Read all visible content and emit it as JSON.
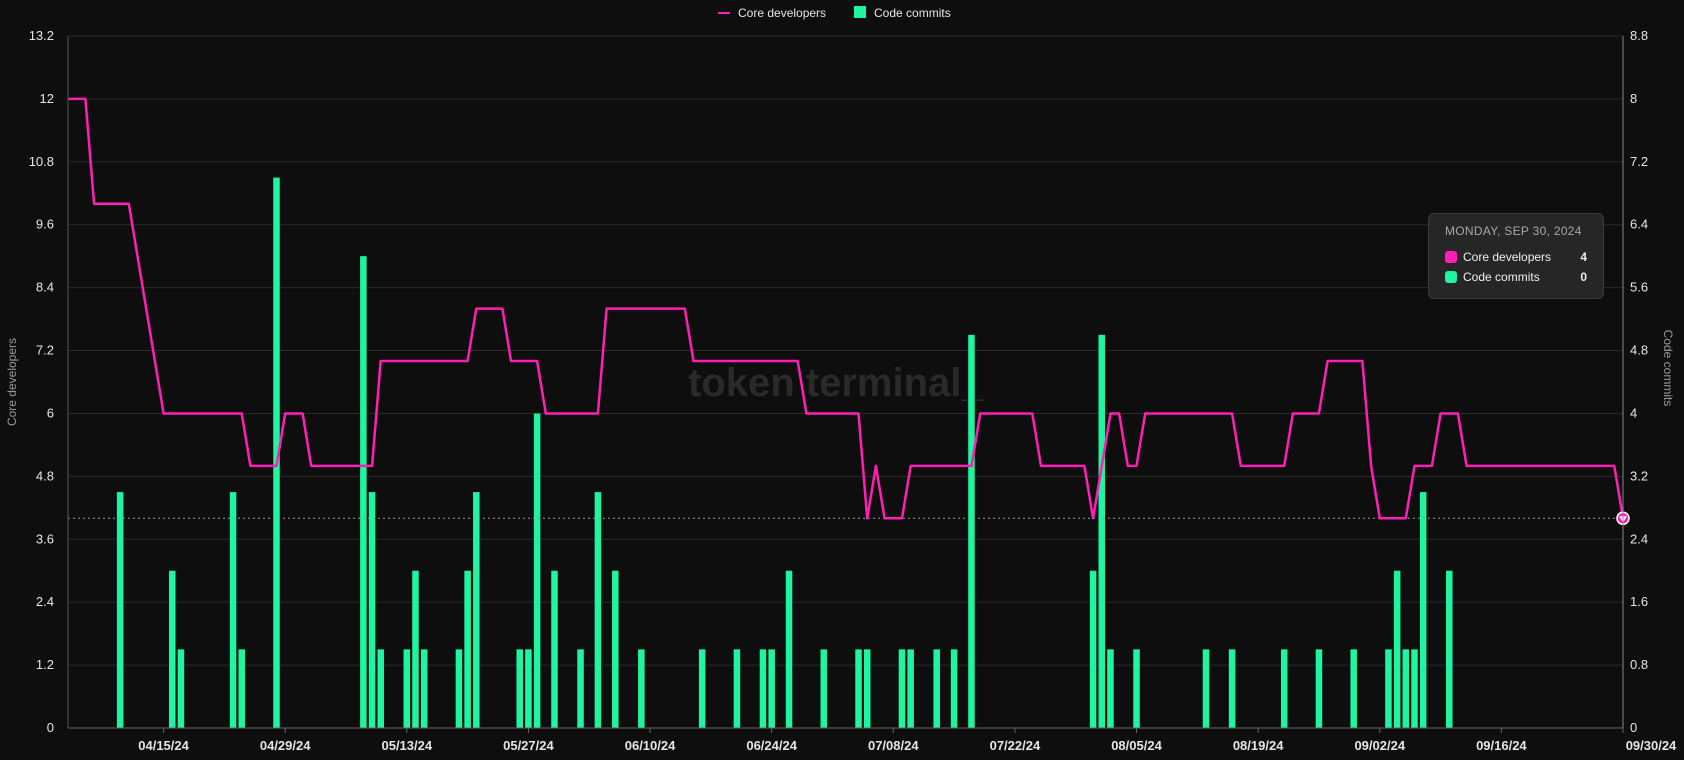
{
  "chart_data": {
    "type": "bar+line",
    "legend": [
      {
        "name": "Core developers",
        "color": "#ff1fb4",
        "marker": "line"
      },
      {
        "name": "Code commits",
        "color": "#1ff5a0",
        "marker": "square"
      }
    ],
    "legend_position": "top-center",
    "y_left": {
      "label": "Core developers",
      "lim": [
        0,
        13.2
      ],
      "ticks": [
        "0",
        "1.2",
        "2.4",
        "3.6",
        "4.8",
        "6",
        "7.2",
        "8.4",
        "9.6",
        "10.8",
        "12",
        "13.2"
      ]
    },
    "y_right": {
      "label": "Code commits",
      "lim": [
        0,
        8.8
      ],
      "ticks": [
        "0",
        "0.8",
        "1.6",
        "2.4",
        "3.2",
        "4",
        "4.8",
        "5.6",
        "6.4",
        "7.2",
        "8",
        "8.8"
      ]
    },
    "x_range_days": [
      0,
      178
    ],
    "x_ticks": [
      {
        "label": "04/15/24",
        "day": 11
      },
      {
        "label": "04/29/24",
        "day": 25
      },
      {
        "label": "05/13/24",
        "day": 39
      },
      {
        "label": "05/27/24",
        "day": 53
      },
      {
        "label": "06/10/24",
        "day": 67
      },
      {
        "label": "06/24/24",
        "day": 81
      },
      {
        "label": "07/08/24",
        "day": 95
      },
      {
        "label": "07/22/24",
        "day": 109
      },
      {
        "label": "08/05/24",
        "day": 123
      },
      {
        "label": "08/19/24",
        "day": 137
      },
      {
        "label": "09/02/24",
        "day": 151
      },
      {
        "label": "09/16/24",
        "day": 165
      },
      {
        "label": "09/30/24",
        "day": 179
      }
    ],
    "series": [
      {
        "name": "Core developers",
        "axis": "left",
        "type": "line",
        "color": "#ff1fb4",
        "points": [
          [
            0,
            12
          ],
          [
            2,
            12
          ],
          [
            3,
            10
          ],
          [
            7,
            10
          ],
          [
            11,
            6
          ],
          [
            20,
            6
          ],
          [
            21,
            5
          ],
          [
            24,
            5
          ],
          [
            25,
            6
          ],
          [
            27,
            6
          ],
          [
            28,
            5
          ],
          [
            35,
            5
          ],
          [
            36,
            7
          ],
          [
            46,
            7
          ],
          [
            47,
            8
          ],
          [
            50,
            8
          ],
          [
            51,
            7
          ],
          [
            54,
            7
          ],
          [
            55,
            6
          ],
          [
            61,
            6
          ],
          [
            62,
            8
          ],
          [
            71,
            8
          ],
          [
            72,
            7
          ],
          [
            84,
            7
          ],
          [
            85,
            6
          ],
          [
            91,
            6
          ],
          [
            92,
            4
          ],
          [
            93,
            5
          ],
          [
            94,
            4
          ],
          [
            96,
            4
          ],
          [
            97,
            5
          ],
          [
            104,
            5
          ],
          [
            105,
            6
          ],
          [
            111,
            6
          ],
          [
            112,
            5
          ],
          [
            117,
            5
          ],
          [
            118,
            4
          ],
          [
            120,
            6
          ],
          [
            121,
            6
          ],
          [
            122,
            5
          ],
          [
            123,
            5
          ],
          [
            124,
            6
          ],
          [
            134,
            6
          ],
          [
            135,
            5
          ],
          [
            140,
            5
          ],
          [
            141,
            6
          ],
          [
            144,
            6
          ],
          [
            145,
            7
          ],
          [
            149,
            7
          ],
          [
            150,
            5
          ],
          [
            151,
            4
          ],
          [
            154,
            4
          ],
          [
            155,
            5
          ],
          [
            157,
            5
          ],
          [
            158,
            6
          ],
          [
            160,
            6
          ],
          [
            161,
            5
          ],
          [
            178,
            5
          ],
          [
            179,
            4
          ]
        ]
      },
      {
        "name": "Code commits",
        "axis": "right",
        "type": "bar",
        "color": "#1ff5a0",
        "points": [
          [
            6,
            3
          ],
          [
            12,
            2
          ],
          [
            13,
            1
          ],
          [
            19,
            3
          ],
          [
            20,
            1
          ],
          [
            24,
            7
          ],
          [
            34,
            6
          ],
          [
            35,
            3
          ],
          [
            36,
            1
          ],
          [
            39,
            1
          ],
          [
            40,
            2
          ],
          [
            41,
            1
          ],
          [
            45,
            1
          ],
          [
            46,
            2
          ],
          [
            47,
            3
          ],
          [
            52,
            1
          ],
          [
            53,
            1
          ],
          [
            54,
            4
          ],
          [
            56,
            2
          ],
          [
            59,
            1
          ],
          [
            61,
            3
          ],
          [
            63,
            2
          ],
          [
            66,
            1
          ],
          [
            73,
            1
          ],
          [
            77,
            1
          ],
          [
            80,
            1
          ],
          [
            81,
            1
          ],
          [
            83,
            2
          ],
          [
            87,
            1
          ],
          [
            91,
            1
          ],
          [
            92,
            1
          ],
          [
            96,
            1
          ],
          [
            97,
            1
          ],
          [
            100,
            1
          ],
          [
            102,
            1
          ],
          [
            104,
            5
          ],
          [
            118,
            2
          ],
          [
            119,
            5
          ],
          [
            120,
            1
          ],
          [
            123,
            1
          ],
          [
            131,
            1
          ],
          [
            134,
            1
          ],
          [
            140,
            1
          ],
          [
            144,
            1
          ],
          [
            148,
            1
          ],
          [
            152,
            1
          ],
          [
            153,
            2
          ],
          [
            154,
            1
          ],
          [
            155,
            1
          ],
          [
            156,
            3
          ],
          [
            159,
            2
          ]
        ]
      }
    ],
    "reference_line": {
      "axis": "left",
      "value": 4,
      "style": "dotted"
    },
    "highlight_point": {
      "series": "Core developers",
      "day": 179,
      "value": 4
    }
  },
  "watermark": "token terminal_",
  "tooltip": {
    "date": "MONDAY, SEP 30, 2024",
    "rows": [
      {
        "label": "Core developers",
        "value": "4",
        "color": "#ff1fb4"
      },
      {
        "label": "Code commits",
        "value": "0",
        "color": "#1ff5a0"
      }
    ]
  }
}
